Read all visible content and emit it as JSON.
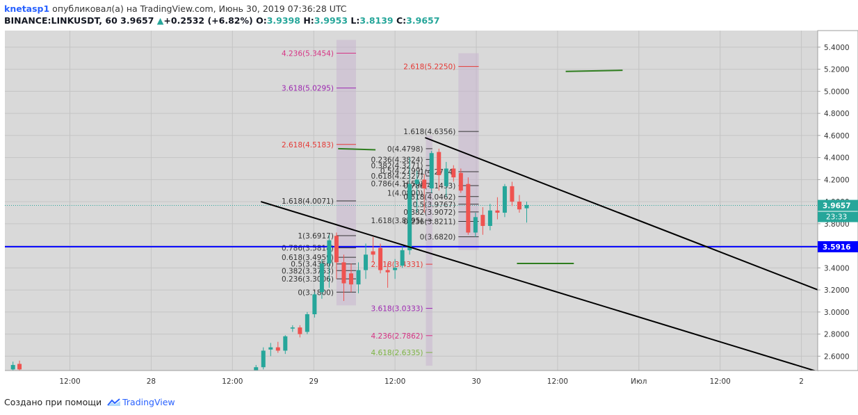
{
  "header": {
    "username": "knetasp1",
    "published_text": "опубликовал(а) на TradingView.com, Июнь 30, 2019 07:36:28 UTC",
    "symbol": "BINANCE:LINKUSDT, 60",
    "last": "3.9657",
    "change": "+0.2532 (+6.82%)",
    "o_label": "O:",
    "o_value": "3.9398",
    "h_label": "H:",
    "h_value": "3.9953",
    "l_label": "L:",
    "l_value": "3.8139",
    "c_label": "C:",
    "c_value": "3.9657"
  },
  "footer": {
    "created_text": "Создано при помощи",
    "brand": "TradingView"
  },
  "colors": {
    "up": "#26a69a",
    "down": "#ef5350",
    "background": "#d9d9d9",
    "grid": "#c4c4c4",
    "support_line": "#0000ff",
    "trend_line": "#000000",
    "marker_line": "#2e7d1e"
  },
  "chart_data": {
    "type": "candlestick",
    "y_range": [
      2.47,
      5.55
    ],
    "x_range": [
      0,
      100
    ],
    "y_ticks": [
      "2.6000",
      "2.8000",
      "3.0000",
      "3.2000",
      "3.4000",
      "3.6000",
      "3.8000",
      "4.0000",
      "4.2000",
      "4.4000",
      "4.6000",
      "4.8000",
      "5.0000",
      "5.2000",
      "5.4000"
    ],
    "x_ticks": [
      {
        "label": "12:00",
        "x": 8
      },
      {
        "label": "28",
        "x": 18
      },
      {
        "label": "12:00",
        "x": 28
      },
      {
        "label": "29",
        "x": 38
      },
      {
        "label": "12:00",
        "x": 48
      },
      {
        "label": "30",
        "x": 58
      },
      {
        "label": "12:00",
        "x": 68
      },
      {
        "label": "Июл",
        "x": 78
      },
      {
        "label": "12:00",
        "x": 88
      },
      {
        "label": "2",
        "x": 98
      }
    ],
    "last_price": {
      "value": 3.9657,
      "label": "3.9657",
      "countdown": "23:33"
    },
    "support": {
      "value": 3.5916,
      "label": "3.5916"
    },
    "candles": [
      {
        "x": 1.0,
        "o": 2.48,
        "h": 2.55,
        "l": 2.45,
        "c": 2.52
      },
      {
        "x": 1.8,
        "o": 2.53,
        "h": 2.56,
        "l": 2.46,
        "c": 2.48
      },
      {
        "x": 30.9,
        "o": 2.46,
        "h": 2.52,
        "l": 2.42,
        "c": 2.5
      },
      {
        "x": 31.8,
        "o": 2.5,
        "h": 2.68,
        "l": 2.48,
        "c": 2.65
      },
      {
        "x": 32.7,
        "o": 2.66,
        "h": 2.72,
        "l": 2.6,
        "c": 2.68
      },
      {
        "x": 33.6,
        "o": 2.68,
        "h": 2.73,
        "l": 2.63,
        "c": 2.65
      },
      {
        "x": 34.5,
        "o": 2.65,
        "h": 2.79,
        "l": 2.62,
        "c": 2.78
      },
      {
        "x": 35.4,
        "o": 2.85,
        "h": 2.88,
        "l": 2.82,
        "c": 2.86
      },
      {
        "x": 36.3,
        "o": 2.86,
        "h": 2.88,
        "l": 2.77,
        "c": 2.8
      },
      {
        "x": 37.2,
        "o": 2.82,
        "h": 3.0,
        "l": 2.8,
        "c": 2.98
      },
      {
        "x": 38.1,
        "o": 2.98,
        "h": 3.18,
        "l": 2.95,
        "c": 3.16
      },
      {
        "x": 39.0,
        "o": 3.18,
        "h": 3.48,
        "l": 3.12,
        "c": 3.44
      },
      {
        "x": 39.9,
        "o": 3.44,
        "h": 3.7,
        "l": 3.22,
        "c": 3.65
      },
      {
        "x": 40.8,
        "o": 3.69,
        "h": 3.72,
        "l": 3.3,
        "c": 3.45
      },
      {
        "x": 41.7,
        "o": 3.45,
        "h": 3.52,
        "l": 3.1,
        "c": 3.26
      },
      {
        "x": 42.6,
        "o": 3.35,
        "h": 3.44,
        "l": 3.18,
        "c": 3.25
      },
      {
        "x": 43.5,
        "o": 3.25,
        "h": 3.45,
        "l": 3.17,
        "c": 3.38
      },
      {
        "x": 44.4,
        "o": 3.38,
        "h": 3.62,
        "l": 3.3,
        "c": 3.52
      },
      {
        "x": 45.3,
        "o": 3.55,
        "h": 3.68,
        "l": 3.45,
        "c": 3.52
      },
      {
        "x": 46.2,
        "o": 3.58,
        "h": 3.62,
        "l": 3.35,
        "c": 3.38
      },
      {
        "x": 47.1,
        "o": 3.38,
        "h": 3.44,
        "l": 3.22,
        "c": 3.36
      },
      {
        "x": 48.0,
        "o": 3.38,
        "h": 3.48,
        "l": 3.3,
        "c": 3.4
      },
      {
        "x": 48.9,
        "o": 3.42,
        "h": 3.6,
        "l": 3.4,
        "c": 3.56
      },
      {
        "x": 49.8,
        "o": 3.56,
        "h": 4.4,
        "l": 3.52,
        "c": 4.16
      },
      {
        "x": 50.7,
        "o": 4.16,
        "h": 4.28,
        "l": 3.9,
        "c": 4.2
      },
      {
        "x": 51.6,
        "o": 4.2,
        "h": 4.25,
        "l": 3.9,
        "c": 4.12
      },
      {
        "x": 52.5,
        "o": 4.12,
        "h": 4.46,
        "l": 4.08,
        "c": 4.44
      },
      {
        "x": 53.4,
        "o": 4.45,
        "h": 4.48,
        "l": 4.1,
        "c": 4.24
      },
      {
        "x": 54.3,
        "o": 4.14,
        "h": 4.36,
        "l": 4.04,
        "c": 4.3
      },
      {
        "x": 55.2,
        "o": 4.3,
        "h": 4.33,
        "l": 4.18,
        "c": 4.22
      },
      {
        "x": 56.1,
        "o": 4.26,
        "h": 4.3,
        "l": 4.08,
        "c": 4.1
      },
      {
        "x": 57.0,
        "o": 4.16,
        "h": 4.22,
        "l": 3.7,
        "c": 3.72
      },
      {
        "x": 57.9,
        "o": 3.72,
        "h": 3.9,
        "l": 3.68,
        "c": 3.86
      },
      {
        "x": 58.8,
        "o": 3.88,
        "h": 3.95,
        "l": 3.7,
        "c": 3.78
      },
      {
        "x": 59.7,
        "o": 3.78,
        "h": 3.98,
        "l": 3.74,
        "c": 3.92
      },
      {
        "x": 60.6,
        "o": 3.92,
        "h": 4.04,
        "l": 3.84,
        "c": 3.9
      },
      {
        "x": 61.5,
        "o": 3.9,
        "h": 4.16,
        "l": 3.86,
        "c": 4.14
      },
      {
        "x": 62.4,
        "o": 4.14,
        "h": 4.18,
        "l": 3.96,
        "c": 4.0
      },
      {
        "x": 63.3,
        "o": 4.0,
        "h": 4.06,
        "l": 3.9,
        "c": 3.93
      },
      {
        "x": 64.2,
        "o": 3.94,
        "h": 4.0,
        "l": 3.81,
        "c": 3.97
      }
    ],
    "trend_lines": [
      {
        "x1": 31.5,
        "y1": 4.0,
        "x2": 100,
        "y2": 2.46
      },
      {
        "x1": 51.7,
        "y1": 4.58,
        "x2": 102.5,
        "y2": 3.13
      }
    ],
    "short_segments": [
      {
        "x1": 41.0,
        "y1": 4.48,
        "x2": 45.6,
        "y2": 4.47
      },
      {
        "x1": 69.0,
        "y1": 5.18,
        "x2": 76.0,
        "y2": 5.19
      },
      {
        "x1": 63.0,
        "y1": 3.44,
        "x2": 70.0,
        "y2": 3.44
      }
    ],
    "fib_groups": [
      {
        "band_x": [
          40.8,
          43.2
        ],
        "levels": [
          {
            "label": "4.236(5.3454)",
            "value": 5.3454,
            "color": "#d63384"
          },
          {
            "label": "3.618(5.0295)",
            "value": 5.0295,
            "color": "#9c27b0"
          },
          {
            "label": "2.618(4.5183)",
            "value": 4.5183,
            "color": "#e53935"
          },
          {
            "label": "1.618(4.0071)",
            "value": 4.0071,
            "color": "#333333"
          },
          {
            "label": "1(3.6917)",
            "value": 3.6917,
            "color": "#333333"
          },
          {
            "label": "0.786(3.5818)",
            "value": 3.5818,
            "color": "#333333"
          },
          {
            "label": "0.618(3.4959)",
            "value": 3.4959,
            "color": "#333333"
          },
          {
            "label": "0.5(3.4356)",
            "value": 3.4356,
            "color": "#333333"
          },
          {
            "label": "0.382(3.3753)",
            "value": 3.3753,
            "color": "#333333"
          },
          {
            "label": "0.236(3.3006)",
            "value": 3.3006,
            "color": "#333333"
          },
          {
            "label": "0(3.1800)",
            "value": 3.18,
            "color": "#333333"
          }
        ]
      },
      {
        "band_x": [
          51.8,
          52.6
        ],
        "levels": [
          {
            "label": "0(4.4798)",
            "value": 4.4798,
            "color": "#333333"
          },
          {
            "label": "0.236(4.3824)",
            "value": 4.3824,
            "color": "#333333"
          },
          {
            "label": "0.382(4.3271)",
            "value": 4.3271,
            "color": "#333333"
          },
          {
            "label": "0.5(4.2799)",
            "value": 4.2799,
            "color": "#333333"
          },
          {
            "label": "0.618(4.2327)",
            "value": 4.2327,
            "color": "#333333"
          },
          {
            "label": "0.786(4.1650)",
            "value": 4.165,
            "color": "#333333"
          },
          {
            "label": "1(4.0800)",
            "value": 4.08,
            "color": "#333333"
          },
          {
            "label": "1.618(3.8295)",
            "value": 3.8295,
            "color": "#333333"
          },
          {
            "label": "2.618(3.4331)",
            "value": 3.4331,
            "color": "#e53935"
          },
          {
            "label": "3.618(3.0333)",
            "value": 3.0333,
            "color": "#9c27b0"
          },
          {
            "label": "4.236(2.7862)",
            "value": 2.7862,
            "color": "#d63384"
          },
          {
            "label": "4.618(2.6335)",
            "value": 2.6335,
            "color": "#7cb342"
          }
        ]
      },
      {
        "band_x": [
          55.8,
          58.3
        ],
        "levels": [
          {
            "label": "2.618(5.2250)",
            "value": 5.225,
            "color": "#e53935"
          },
          {
            "label": "1.618(4.6356)",
            "value": 4.6356,
            "color": "#333333"
          },
          {
            "label": "1(4.2714)",
            "value": 4.2714,
            "color": "#333333"
          },
          {
            "label": "0.786(4.1453)",
            "value": 4.1453,
            "color": "#333333"
          },
          {
            "label": "0.618(4.0462)",
            "value": 4.0462,
            "color": "#333333"
          },
          {
            "label": "0.5(3.9767)",
            "value": 3.9767,
            "color": "#333333"
          },
          {
            "label": "0.382(3.9072)",
            "value": 3.9072,
            "color": "#333333"
          },
          {
            "label": "0.236(3.8211)",
            "value": 3.8211,
            "color": "#333333"
          },
          {
            "label": "0(3.6820)",
            "value": 3.682,
            "color": "#333333"
          }
        ]
      }
    ]
  }
}
